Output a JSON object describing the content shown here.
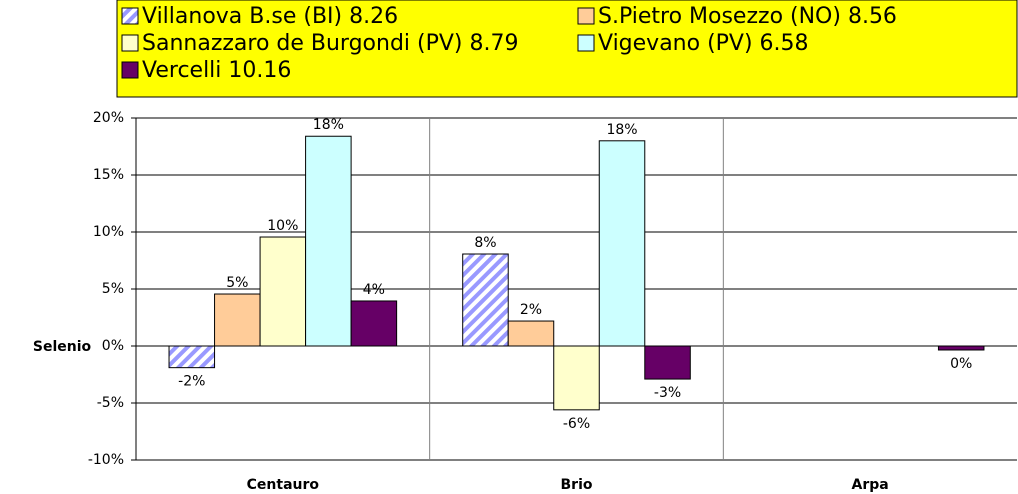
{
  "chart_data": {
    "type": "bar",
    "y_label": "Selenio",
    "categories": [
      "Centauro",
      "Brio",
      "Arpa"
    ],
    "series": [
      {
        "name": "Villanova B.se (BI) 8.26",
        "color": "#9999ff",
        "pattern": "diagonal",
        "values": [
          -1.9,
          8.07,
          null
        ],
        "value_labels": [
          "-2%",
          "8%",
          null
        ]
      },
      {
        "name": "S.Pietro Mosezzo (NO) 8.56",
        "color": "#ffcc99",
        "values": [
          4.56,
          2.19,
          null
        ],
        "value_labels": [
          "5%",
          "2%",
          null
        ]
      },
      {
        "name": "Sannazzaro de Burgondi (PV) 8.79",
        "color": "#ffffcc",
        "values": [
          9.56,
          -5.6,
          null
        ],
        "value_labels": [
          "10%",
          "-6%",
          null
        ]
      },
      {
        "name": "Vigevano (PV) 6.58",
        "color": "#ccffff",
        "values": [
          18.4,
          18.0,
          null
        ],
        "value_labels": [
          "18%",
          "18%",
          null
        ]
      },
      {
        "name": "Vercelli 10.16",
        "color": "#660066",
        "values": [
          3.95,
          -2.9,
          -0.35
        ],
        "value_labels": [
          "4%",
          "-3%",
          "0%"
        ]
      }
    ],
    "ylim": [
      -10,
      20
    ],
    "yticks": [
      {
        "value": -10,
        "label": "-10%"
      },
      {
        "value": -5,
        "label": "-5%"
      },
      {
        "value": 0,
        "label": "0%"
      },
      {
        "value": 5,
        "label": "5%"
      },
      {
        "value": 10,
        "label": "10%"
      },
      {
        "value": 15,
        "label": "15%"
      },
      {
        "value": 20,
        "label": "20%"
      }
    ],
    "grid": true,
    "legend": "top"
  }
}
